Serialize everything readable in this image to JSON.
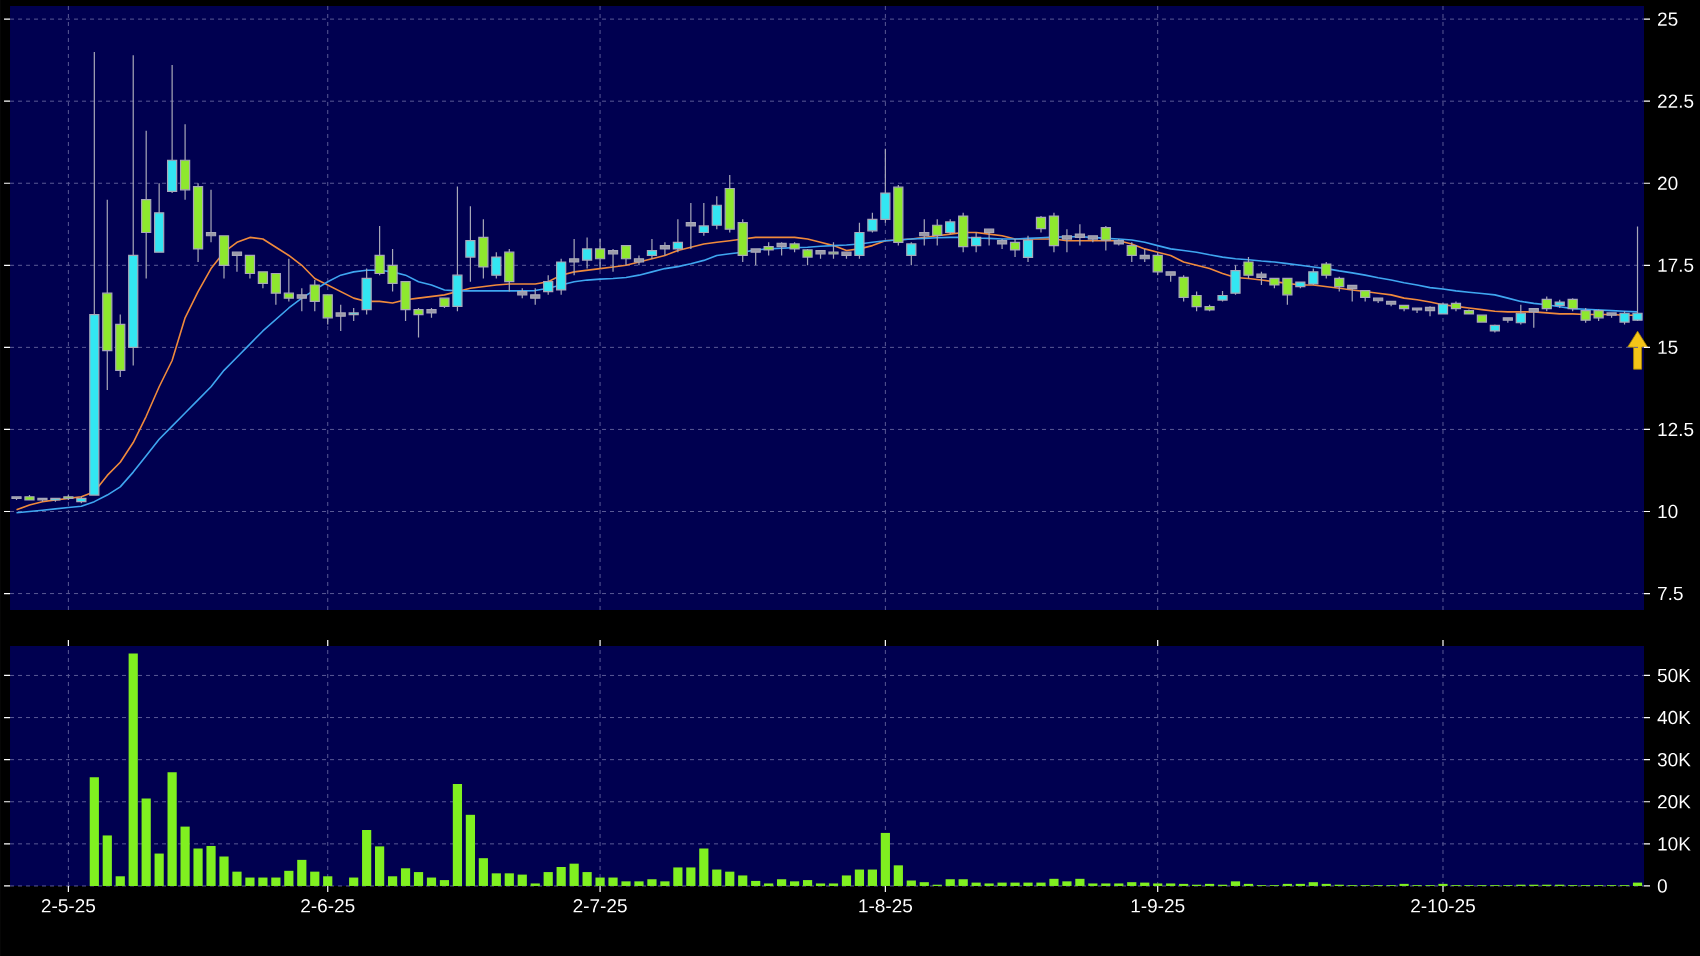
{
  "chart_data": [
    {
      "type": "candlestick",
      "ylim": [
        7.0,
        25.4
      ],
      "yticks": [
        7.5,
        10,
        12.5,
        15,
        17.5,
        20,
        22.5,
        25
      ],
      "grid": true,
      "tick_labels": "y",
      "categories": [
        null,
        null,
        null,
        null,
        null,
        null,
        null,
        null,
        null,
        null,
        null,
        null,
        null,
        null,
        null,
        null,
        null,
        null,
        null,
        null,
        null,
        null,
        null,
        null,
        null,
        null,
        null,
        null,
        null,
        null,
        null,
        null,
        null,
        null,
        null,
        null,
        null,
        null,
        null,
        null,
        null,
        null,
        null,
        null,
        null,
        null,
        null,
        null,
        null,
        null,
        null,
        null,
        null,
        null,
        null,
        null,
        null,
        null,
        null,
        null,
        null,
        null,
        null,
        null,
        null,
        null,
        null,
        null,
        null,
        null,
        null,
        null,
        null,
        null,
        null,
        null,
        null,
        null,
        null,
        null,
        null,
        null,
        null,
        null,
        null,
        null,
        null,
        null,
        null,
        null,
        null,
        null,
        null,
        null,
        null,
        null,
        null,
        null,
        null,
        null,
        null,
        null,
        null,
        null,
        null,
        null,
        null,
        null,
        null,
        null,
        null,
        null,
        null,
        null,
        null,
        null,
        null,
        null,
        null,
        null,
        null,
        null,
        null,
        null,
        null,
        null
      ],
      "ohlc": [
        [
          10.45,
          10.45,
          10.35,
          10.4
        ],
        [
          10.45,
          10.5,
          10.35,
          10.35
        ],
        [
          10.4,
          10.4,
          10.3,
          10.35
        ],
        [
          10.35,
          10.4,
          10.3,
          10.4
        ],
        [
          10.45,
          10.5,
          10.35,
          10.4
        ],
        [
          10.3,
          10.45,
          10.25,
          10.4
        ],
        [
          10.5,
          24.0,
          10.5,
          16.0
        ],
        [
          16.65,
          19.5,
          13.7,
          14.9
        ],
        [
          15.7,
          16.0,
          14.1,
          14.3
        ],
        [
          15.0,
          23.9,
          14.45,
          17.8
        ],
        [
          19.5,
          21.6,
          17.1,
          18.5
        ],
        [
          17.9,
          20.0,
          17.9,
          19.1
        ],
        [
          19.75,
          23.6,
          19.7,
          20.7
        ],
        [
          20.7,
          21.8,
          19.5,
          19.8
        ],
        [
          19.9,
          20.0,
          17.6,
          18.0
        ],
        [
          18.5,
          19.8,
          18.2,
          18.4
        ],
        [
          18.4,
          18.4,
          17.1,
          17.5
        ],
        [
          17.9,
          17.9,
          17.3,
          17.8
        ],
        [
          17.8,
          17.8,
          17.1,
          17.25
        ],
        [
          17.3,
          17.3,
          16.8,
          16.95
        ],
        [
          17.25,
          17.25,
          16.3,
          16.65
        ],
        [
          16.65,
          17.7,
          16.4,
          16.5
        ],
        [
          16.6,
          16.8,
          16.1,
          16.5
        ],
        [
          16.9,
          17.05,
          16.1,
          16.4
        ],
        [
          16.6,
          16.6,
          15.7,
          15.9
        ],
        [
          16.05,
          16.3,
          15.5,
          15.95
        ],
        [
          16.0,
          16.2,
          15.8,
          16.05
        ],
        [
          16.15,
          17.4,
          16.0,
          17.1
        ],
        [
          17.8,
          18.7,
          17.2,
          17.25
        ],
        [
          17.5,
          18.0,
          16.7,
          16.95
        ],
        [
          17.0,
          17.0,
          15.8,
          16.15
        ],
        [
          16.15,
          16.2,
          15.3,
          16.0
        ],
        [
          16.15,
          16.2,
          15.9,
          16.05
        ],
        [
          16.5,
          16.5,
          16.2,
          16.25
        ],
        [
          16.25,
          19.9,
          16.1,
          17.2
        ],
        [
          17.75,
          19.3,
          17.0,
          18.25
        ],
        [
          18.35,
          18.9,
          17.1,
          17.45
        ],
        [
          17.2,
          17.9,
          17.1,
          17.75
        ],
        [
          17.9,
          18.0,
          16.7,
          17.0
        ],
        [
          16.7,
          16.8,
          16.5,
          16.6
        ],
        [
          16.6,
          16.8,
          16.3,
          16.5
        ],
        [
          16.7,
          17.2,
          16.6,
          17.0
        ],
        [
          16.75,
          17.7,
          16.6,
          17.6
        ],
        [
          17.7,
          18.3,
          17.2,
          17.6
        ],
        [
          17.66,
          18.35,
          17.4,
          18.0
        ],
        [
          18.0,
          18.3,
          17.4,
          17.7
        ],
        [
          17.95,
          18.0,
          17.3,
          17.85
        ],
        [
          18.1,
          18.1,
          17.5,
          17.7
        ],
        [
          17.7,
          17.8,
          17.5,
          17.6
        ],
        [
          17.8,
          18.3,
          17.7,
          17.95
        ],
        [
          18.1,
          18.2,
          17.8,
          18.0
        ],
        [
          18.0,
          18.9,
          17.9,
          18.2
        ],
        [
          18.8,
          19.4,
          18.0,
          18.7
        ],
        [
          18.5,
          19.4,
          18.4,
          18.7
        ],
        [
          18.72,
          19.6,
          18.6,
          19.33
        ],
        [
          19.84,
          20.25,
          18.5,
          18.6
        ],
        [
          18.8,
          18.9,
          17.6,
          17.8
        ],
        [
          18.0,
          18.0,
          17.5,
          17.9
        ],
        [
          18.07,
          18.2,
          17.8,
          17.97
        ],
        [
          18.17,
          18.2,
          17.8,
          18.07
        ],
        [
          18.15,
          18.2,
          17.9,
          18.0
        ],
        [
          17.97,
          18.0,
          17.5,
          17.75
        ],
        [
          17.95,
          17.95,
          17.7,
          17.85
        ],
        [
          17.9,
          18.2,
          17.7,
          17.85
        ],
        [
          17.9,
          17.9,
          17.7,
          17.8
        ],
        [
          17.8,
          18.8,
          17.7,
          18.5
        ],
        [
          18.55,
          19.1,
          18.5,
          18.9
        ],
        [
          18.9,
          21.05,
          18.8,
          19.7
        ],
        [
          19.88,
          19.95,
          18.1,
          18.2
        ],
        [
          17.8,
          18.2,
          17.5,
          18.15
        ],
        [
          18.5,
          18.9,
          18.1,
          18.4
        ],
        [
          18.72,
          18.9,
          18.1,
          18.41
        ],
        [
          18.5,
          18.9,
          18.45,
          18.82
        ],
        [
          19.0,
          19.1,
          17.9,
          18.07
        ],
        [
          18.1,
          18.5,
          17.9,
          18.35
        ],
        [
          18.6,
          18.6,
          18.1,
          18.5
        ],
        [
          18.25,
          18.3,
          18.0,
          18.15
        ],
        [
          18.2,
          18.3,
          17.75,
          17.97
        ],
        [
          17.74,
          18.4,
          17.6,
          18.27
        ],
        [
          18.96,
          19.0,
          18.5,
          18.62
        ],
        [
          19.0,
          19.1,
          17.9,
          18.1
        ],
        [
          18.4,
          18.6,
          17.9,
          18.3
        ],
        [
          18.45,
          18.75,
          18.1,
          18.35
        ],
        [
          18.4,
          18.4,
          18.2,
          18.3
        ],
        [
          18.65,
          18.7,
          17.95,
          18.27
        ],
        [
          18.25,
          18.3,
          18.1,
          18.15
        ],
        [
          18.1,
          18.2,
          17.6,
          17.8
        ],
        [
          17.8,
          18.0,
          17.6,
          17.7
        ],
        [
          17.8,
          17.9,
          17.2,
          17.3
        ],
        [
          17.3,
          17.3,
          17.0,
          17.2
        ],
        [
          17.13,
          17.2,
          16.4,
          16.52
        ],
        [
          16.58,
          16.7,
          16.1,
          16.24
        ],
        [
          16.24,
          16.3,
          16.1,
          16.14
        ],
        [
          16.44,
          16.72,
          16.4,
          16.58
        ],
        [
          16.65,
          17.5,
          16.6,
          17.34
        ],
        [
          17.6,
          17.75,
          17.1,
          17.2
        ],
        [
          17.23,
          17.3,
          16.9,
          17.13
        ],
        [
          17.1,
          17.1,
          16.8,
          16.9
        ],
        [
          17.1,
          17.1,
          16.3,
          16.6
        ],
        [
          16.85,
          17.0,
          16.8,
          16.99
        ],
        [
          16.93,
          17.4,
          16.9,
          17.3
        ],
        [
          17.54,
          17.6,
          17.1,
          17.2
        ],
        [
          17.1,
          17.15,
          16.7,
          16.85
        ],
        [
          16.89,
          16.9,
          16.4,
          16.79
        ],
        [
          16.73,
          16.75,
          16.4,
          16.52
        ],
        [
          16.5,
          16.5,
          16.35,
          16.42
        ],
        [
          16.4,
          16.4,
          16.25,
          16.32
        ],
        [
          16.28,
          16.3,
          16.1,
          16.18
        ],
        [
          16.2,
          16.2,
          16.05,
          16.14
        ],
        [
          16.22,
          16.25,
          15.95,
          16.12
        ],
        [
          16.02,
          16.35,
          16.0,
          16.32
        ],
        [
          16.34,
          16.4,
          16.1,
          16.18
        ],
        [
          16.12,
          16.15,
          16.0,
          16.02
        ],
        [
          15.98,
          16.0,
          15.75,
          15.77
        ],
        [
          15.5,
          15.7,
          15.45,
          15.67
        ],
        [
          15.9,
          15.9,
          15.75,
          15.83
        ],
        [
          15.75,
          16.3,
          15.7,
          16.04
        ],
        [
          16.18,
          16.2,
          15.6,
          16.08
        ],
        [
          16.46,
          16.55,
          16.1,
          16.18
        ],
        [
          16.28,
          16.45,
          16.2,
          16.38
        ],
        [
          16.46,
          16.5,
          16.1,
          16.18
        ],
        [
          16.12,
          16.2,
          15.75,
          15.83
        ],
        [
          16.12,
          16.15,
          15.8,
          15.9
        ],
        [
          16.05,
          16.05,
          15.9,
          15.98
        ],
        [
          15.77,
          16.1,
          15.7,
          16.04
        ],
        [
          15.83,
          18.68,
          15.8,
          16.04
        ]
      ],
      "colors": [
        "#9a9aa8",
        "#8ee82e",
        "#9a9aa8",
        "#33e6f2",
        "#8ee82e",
        "#33e6f2",
        "#33e6f2",
        "#8ee82e",
        "#8ee82e",
        "#33e6f2",
        "#8ee82e",
        "#33e6f2",
        "#33e6f2",
        "#8ee82e",
        "#8ee82e",
        "#9a9aa8",
        "#8ee82e",
        "#9a9aa8",
        "#8ee82e",
        "#8ee82e",
        "#8ee82e",
        "#8ee82e",
        "#9a9aa8",
        "#8ee82e",
        "#8ee82e",
        "#9a9aa8",
        "#33e6f2",
        "#33e6f2",
        "#8ee82e",
        "#8ee82e",
        "#8ee82e",
        "#8ee82e",
        "#9a9aa8",
        "#8ee82e",
        "#33e6f2",
        "#33e6f2",
        "#8ee82e",
        "#33e6f2",
        "#8ee82e",
        "#9a9aa8",
        "#9a9aa8",
        "#33e6f2",
        "#33e6f2",
        "#9a9aa8",
        "#33e6f2",
        "#8ee82e",
        "#9a9aa8",
        "#8ee82e",
        "#9a9aa8",
        "#33e6f2",
        "#9a9aa8",
        "#33e6f2",
        "#9a9aa8",
        "#33e6f2",
        "#33e6f2",
        "#8ee82e",
        "#8ee82e",
        "#9a9aa8",
        "#8ee82e",
        "#9a9aa8",
        "#8ee82e",
        "#8ee82e",
        "#9a9aa8",
        "#8ee82e",
        "#9a9aa8",
        "#33e6f2",
        "#33e6f2",
        "#33e6f2",
        "#8ee82e",
        "#33e6f2",
        "#9a9aa8",
        "#8ee82e",
        "#33e6f2",
        "#8ee82e",
        "#33e6f2",
        "#9a9aa8",
        "#9a9aa8",
        "#8ee82e",
        "#33e6f2",
        "#8ee82e",
        "#8ee82e",
        "#9a9aa8",
        "#9a9aa8",
        "#9a9aa8",
        "#8ee82e",
        "#9a9aa8",
        "#8ee82e",
        "#9a9aa8",
        "#8ee82e",
        "#9a9aa8",
        "#8ee82e",
        "#8ee82e",
        "#8ee82e",
        "#33e6f2",
        "#33e6f2",
        "#8ee82e",
        "#9a9aa8",
        "#8ee82e",
        "#8ee82e",
        "#33e6f2",
        "#33e6f2",
        "#8ee82e",
        "#8ee82e",
        "#9a9aa8",
        "#8ee82e",
        "#9a9aa8",
        "#9a9aa8",
        "#8ee82e",
        "#9a9aa8",
        "#9a9aa8",
        "#33e6f2",
        "#8ee82e",
        "#8ee82e",
        "#8ee82e",
        "#33e6f2",
        "#9a9aa8",
        "#33e6f2",
        "#9a9aa8",
        "#8ee82e",
        "#33e6f2",
        "#8ee82e",
        "#8ee82e",
        "#8ee82e",
        "#9a9aa8",
        "#33e6f2",
        "#33e6f2"
      ],
      "series": [
        {
          "type": "line",
          "color": "#f08a3c",
          "values": [
            10.05,
            10.2,
            10.3,
            10.35,
            10.4,
            10.45,
            10.6,
            11.1,
            11.5,
            12.1,
            12.9,
            13.8,
            14.6,
            15.9,
            16.7,
            17.4,
            17.9,
            18.2,
            18.35,
            18.3,
            18.05,
            17.8,
            17.5,
            17.1,
            16.9,
            16.7,
            16.5,
            16.4,
            16.4,
            16.35,
            16.45,
            16.5,
            16.55,
            16.6,
            16.7,
            16.8,
            16.85,
            16.9,
            16.93,
            16.93,
            16.93,
            17.0,
            17.2,
            17.3,
            17.35,
            17.4,
            17.45,
            17.5,
            17.6,
            17.7,
            17.8,
            17.95,
            18.05,
            18.15,
            18.2,
            18.25,
            18.3,
            18.35,
            18.35,
            18.35,
            18.35,
            18.3,
            18.2,
            18.1,
            17.95,
            18.0,
            18.1,
            18.25,
            null,
            18.3,
            18.35,
            18.4,
            18.45,
            18.5,
            18.5,
            18.45,
            18.4,
            18.3,
            18.3,
            18.3,
            18.3,
            18.25,
            18.25,
            18.25,
            18.25,
            18.25,
            18.15,
            18.0,
            17.9,
            17.8,
            17.6,
            17.5,
            17.4,
            17.25,
            17.13,
            17.1,
            17.05,
            17.0,
            16.95,
            16.9,
            16.9,
            16.85,
            16.8,
            16.75,
            16.7,
            16.65,
            16.6,
            16.5,
            16.45,
            16.38,
            16.3,
            16.25,
            16.2,
            16.15,
            16.1,
            16.08,
            16.08,
            16.08,
            16.05,
            16.02,
            16.02,
            16.0,
            16.0,
            16.0,
            15.98,
            15.98
          ]
        },
        {
          "type": "line",
          "color": "#3fa6f0",
          "values": [
            9.96,
            10.0,
            10.04,
            10.08,
            10.12,
            10.16,
            10.3,
            10.5,
            10.75,
            11.2,
            11.7,
            12.2,
            12.6,
            13.0,
            13.4,
            13.8,
            14.3,
            14.7,
            15.1,
            15.5,
            15.85,
            16.2,
            16.5,
            16.75,
            17.0,
            17.2,
            17.3,
            17.35,
            17.35,
            17.3,
            17.2,
            17.0,
            16.9,
            16.75,
            16.72,
            16.72,
            16.72,
            16.72,
            16.72,
            16.72,
            16.73,
            16.8,
            16.9,
            17.0,
            17.05,
            17.08,
            17.1,
            17.13,
            17.2,
            17.3,
            17.4,
            17.46,
            17.55,
            17.65,
            17.8,
            17.85,
            17.9,
            17.97,
            18.0,
            18.02,
            18.04,
            18.05,
            18.08,
            18.1,
            18.12,
            18.15,
            18.2,
            18.25,
            18.27,
            18.3,
            18.32,
            18.34,
            18.35,
            18.35,
            18.33,
            18.32,
            18.3,
            18.3,
            18.32,
            18.34,
            18.36,
            18.37,
            18.37,
            18.35,
            18.32,
            18.3,
            18.27,
            18.2,
            18.1,
            18.0,
            17.95,
            17.9,
            17.82,
            17.75,
            17.7,
            17.67,
            17.63,
            17.6,
            17.55,
            17.5,
            17.45,
            17.4,
            17.33,
            17.27,
            17.2,
            17.12,
            17.05,
            16.97,
            16.9,
            16.82,
            16.78,
            16.72,
            16.68,
            16.64,
            16.6,
            16.5,
            16.4,
            16.34,
            16.3,
            16.24,
            16.18,
            16.16,
            16.14,
            16.12,
            16.1,
            16.08
          ]
        }
      ]
    },
    {
      "type": "bar",
      "color": "#80f020",
      "ylim": [
        0,
        57000
      ],
      "yticks": [
        0,
        {
          "value": 10000,
          "label": "10K"
        },
        {
          "value": 20000,
          "label": "20K"
        },
        {
          "value": 30000,
          "label": "30K"
        },
        {
          "value": 40000,
          "label": "40K"
        },
        {
          "value": 50000,
          "label": "50K"
        }
      ],
      "grid": true,
      "categories": [
        null,
        null,
        null,
        null,
        "2-5-25",
        null,
        null,
        null,
        null,
        null,
        null,
        null,
        null,
        null,
        null,
        null,
        null,
        null,
        null,
        null,
        null,
        null,
        null,
        null,
        "2-6-25",
        null,
        null,
        null,
        null,
        null,
        null,
        null,
        null,
        null,
        null,
        null,
        null,
        null,
        null,
        null,
        null,
        null,
        null,
        null,
        null,
        "2-7-25",
        null,
        null,
        null,
        null,
        null,
        null,
        null,
        null,
        null,
        null,
        null,
        null,
        null,
        null,
        null,
        null,
        null,
        null,
        null,
        null,
        null,
        "1-8-25",
        null,
        null,
        null,
        null,
        null,
        null,
        null,
        null,
        null,
        null,
        null,
        null,
        null,
        null,
        null,
        null,
        null,
        null,
        null,
        null,
        "1-9-25",
        null,
        null,
        null,
        null,
        null,
        null,
        null,
        null,
        null,
        null,
        null,
        null,
        null,
        null,
        null,
        null,
        null,
        null,
        null,
        null,
        null,
        "2-10-25",
        null,
        null,
        null,
        null,
        null,
        null,
        null,
        null,
        null,
        null,
        null,
        null,
        null,
        null,
        null
      ],
      "values": [
        0,
        0,
        0,
        0,
        0,
        0,
        25800,
        12000,
        2300,
        55200,
        20800,
        7700,
        27000,
        14100,
        8900,
        9500,
        7000,
        3400,
        2000,
        2000,
        2000,
        3600,
        6200,
        3400,
        2300,
        0,
        2000,
        13300,
        9400,
        2300,
        4200,
        3300,
        2000,
        1400,
        24200,
        16900,
        6600,
        3000,
        3000,
        2700,
        600,
        3300,
        4500,
        5300,
        3300,
        2000,
        2000,
        1100,
        1100,
        1600,
        1100,
        4400,
        4400,
        8900,
        3900,
        3400,
        2500,
        1200,
        600,
        1600,
        1100,
        1400,
        600,
        600,
        2500,
        3900,
        3900,
        12600,
        4900,
        1300,
        900,
        300,
        1600,
        1600,
        800,
        600,
        800,
        800,
        800,
        800,
        1700,
        1100,
        1700,
        600,
        600,
        600,
        900,
        800,
        600,
        600,
        500,
        300,
        500,
        300,
        1100,
        500,
        200,
        200,
        500,
        500,
        900,
        500,
        300,
        200,
        200,
        200,
        200,
        500,
        200,
        200,
        500,
        200,
        200,
        200,
        200,
        200,
        300,
        300,
        300,
        300,
        200,
        200,
        200,
        200,
        200,
        800
      ]
    }
  ]
}
